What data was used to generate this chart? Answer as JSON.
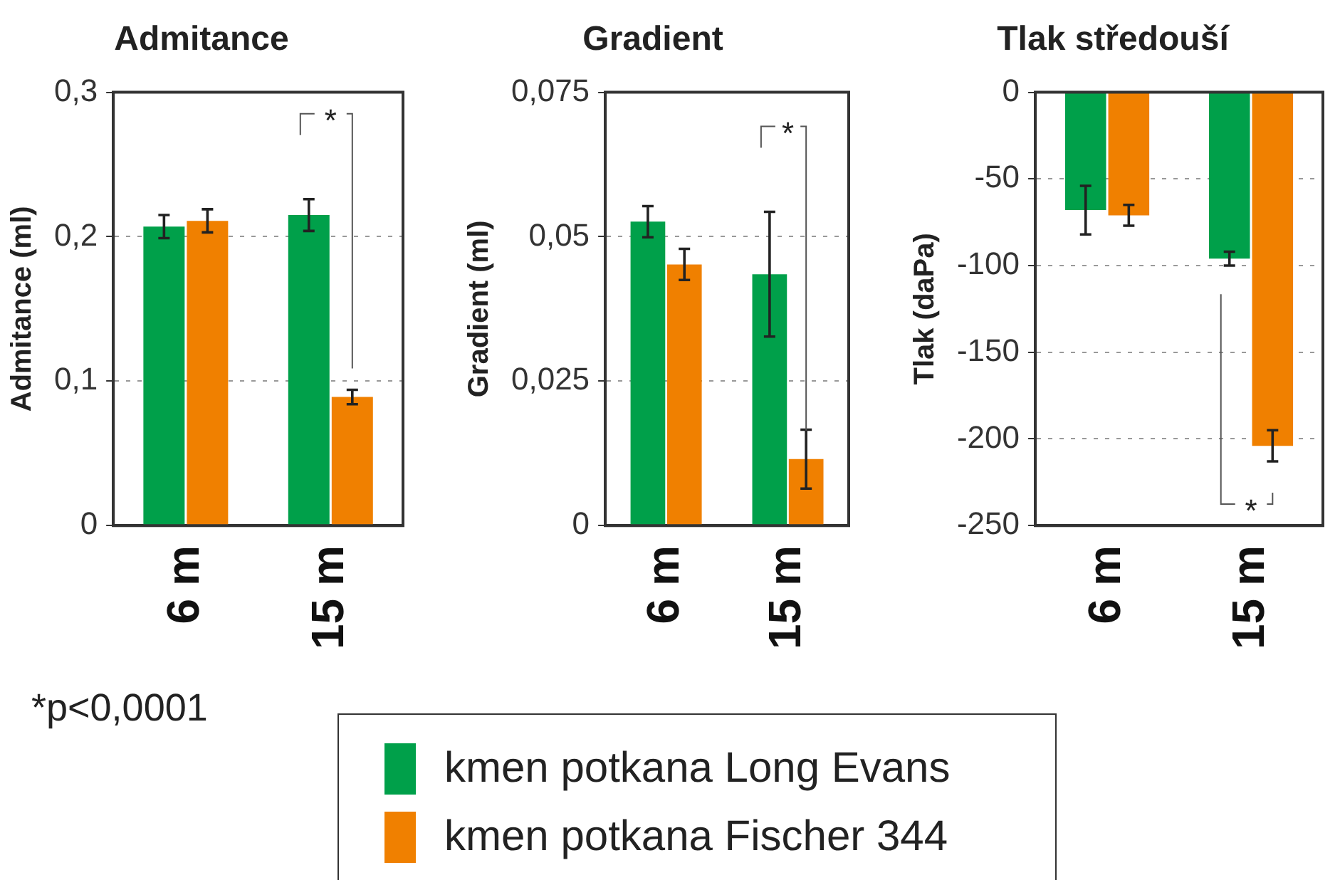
{
  "chart_data": [
    {
      "type": "bar",
      "title": "Admitance",
      "ylabel": "Admitance (ml)",
      "categories": [
        "6 m",
        "15 m"
      ],
      "series": [
        {
          "color": "#00a04a",
          "values": [
            0.207,
            0.215
          ],
          "errors": [
            0.008,
            0.011
          ]
        },
        {
          "color": "#f08000",
          "values": [
            0.211,
            0.089
          ],
          "errors": [
            0.008,
            0.005
          ]
        }
      ],
      "ylim": [
        0,
        0.3
      ],
      "yticks": [
        0,
        {
          "value": 0.1,
          "label": "0,1"
        },
        {
          "value": 0.2,
          "label": "0,2"
        },
        {
          "value": 0.3,
          "label": "0,3"
        }
      ],
      "grid": "y",
      "annotations": [
        "*",
        "*p<0,0001"
      ]
    },
    {
      "type": "bar",
      "title": "Gradient",
      "ylabel": "Gradient (ml)",
      "categories": [
        "6 m",
        "15 m"
      ],
      "series": [
        {
          "name": "kmen potkana Long Evans",
          "color": "#00a04a",
          "values": [
            0.0526,
            0.0435
          ],
          "errors": [
            0.0027,
            0.0108
          ]
        },
        {
          "name": "kmen potkana Fischer 344",
          "color": "#f08000",
          "values": [
            0.0452,
            0.0115
          ],
          "errors": [
            0.0027,
            0.0051
          ]
        }
      ],
      "ylim": [
        0,
        0.075
      ],
      "yticks": [
        0,
        {
          "value": 0.025,
          "label": "0,025"
        },
        {
          "value": 0.05,
          "label": "0,05"
        },
        {
          "value": 0.075,
          "label": "0,075"
        }
      ],
      "grid": "y",
      "legend": "bottom",
      "annotations": [
        "*"
      ]
    },
    {
      "type": "bar",
      "title": "Tlak středouší",
      "ylabel": "Tlak (daPa)",
      "categories": [
        "6 m",
        "15 m"
      ],
      "series": [
        {
          "color": "#00a04a",
          "values": [
            -68,
            -96
          ],
          "errors": [
            14,
            4
          ]
        },
        {
          "color": "#f08000",
          "values": [
            -71,
            -204
          ],
          "errors": [
            6,
            9
          ]
        }
      ],
      "ylim": [
        -250,
        0
      ],
      "yticks": [
        -250,
        -200,
        -150,
        -100,
        -50,
        0
      ],
      "grid": "y",
      "annotations": [
        "*"
      ]
    }
  ]
}
